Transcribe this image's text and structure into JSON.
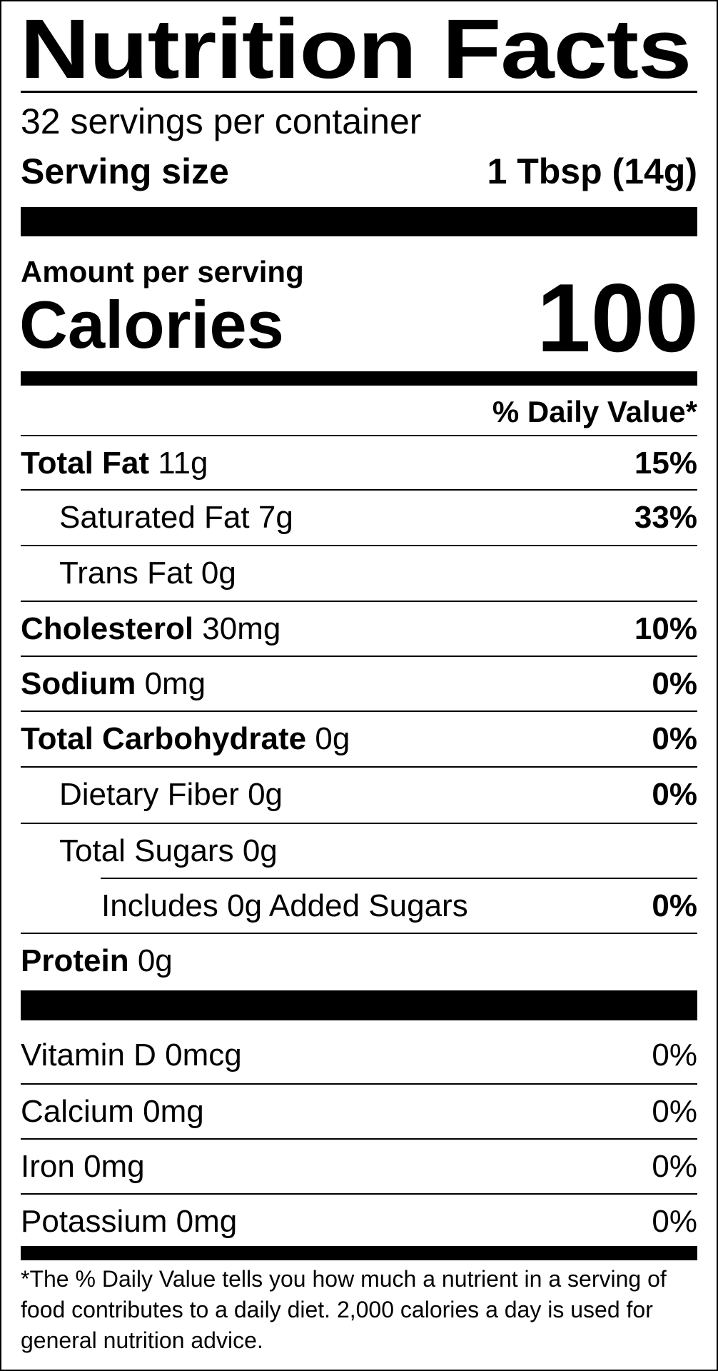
{
  "title": "Nutrition Facts",
  "servings_per_container": "32 servings per container",
  "serving_size_label": "Serving size",
  "serving_size_value": "1 Tbsp (14g)",
  "amount_per_serving": "Amount per serving",
  "calories_label": "Calories",
  "calories_value": "100",
  "daily_value_header": "% Daily Value*",
  "nutrients": [
    {
      "name": "Total Fat",
      "amount": "11g",
      "dv": "15%"
    },
    {
      "name": "Saturated Fat",
      "amount": "7g",
      "dv": "33%"
    },
    {
      "name": "Trans Fat",
      "amount": "0g",
      "dv": ""
    },
    {
      "name": "Cholesterol",
      "amount": "30mg",
      "dv": "10%"
    },
    {
      "name": "Sodium",
      "amount": "0mg",
      "dv": "0%"
    },
    {
      "name": "Total Carbohydrate",
      "amount": "0g",
      "dv": "0%"
    },
    {
      "name": "Dietary Fiber",
      "amount": "0g",
      "dv": "0%"
    },
    {
      "name": "Total Sugars",
      "amount": "0g",
      "dv": ""
    },
    {
      "name": "Includes 0g Added Sugars",
      "amount": "",
      "dv": "0%"
    },
    {
      "name": "Protein",
      "amount": "0g",
      "dv": ""
    }
  ],
  "vitamins": [
    {
      "name": "Vitamin D",
      "amount": "0mcg",
      "dv": "0%"
    },
    {
      "name": "Calcium",
      "amount": "0mg",
      "dv": "0%"
    },
    {
      "name": "Iron",
      "amount": "0mg",
      "dv": "0%"
    },
    {
      "name": "Potassium",
      "amount": "0mg",
      "dv": "0%"
    }
  ],
  "footnote": "*The % Daily Value tells you how much a nutrient in a serving of food contributes to a daily diet. 2,000 calories a day is used for general nutrition advice."
}
